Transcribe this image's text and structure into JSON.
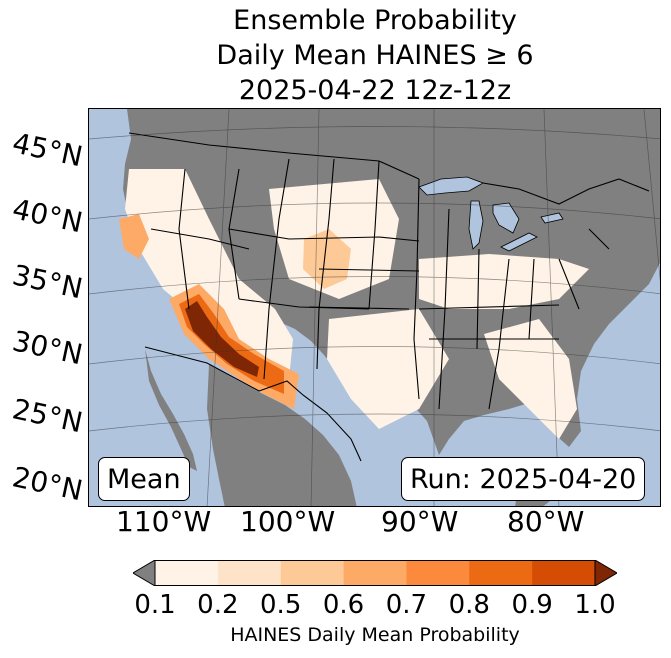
{
  "title": {
    "line1": "Ensemble Probability",
    "line2": "Daily Mean HAINES ≥ 6",
    "line3": "2025-04-22 12z-12z"
  },
  "map": {
    "ocean_color": "#b0c4de",
    "land_color": "#808080",
    "lat_labels": [
      "45°N",
      "40°N",
      "35°N",
      "30°N",
      "25°N",
      "20°N"
    ],
    "lon_labels": [
      "110°W",
      "100°W",
      "90°W",
      "80°W"
    ],
    "mean_label": "Mean",
    "run_label": "Run: 2025-04-20"
  },
  "colorbar": {
    "ticks": [
      "0.1",
      "0.2",
      "0.5",
      "0.6",
      "0.7",
      "0.8",
      "0.9",
      "1.0"
    ],
    "colors": [
      "#fef3e6",
      "#fde3c8",
      "#fdca97",
      "#fdaa66",
      "#fb8a3c",
      "#ed6a15",
      "#d54d04"
    ],
    "under_color": "#808080",
    "over_color": "#7f2704",
    "label": "HAINES Daily Mean Probability"
  }
}
